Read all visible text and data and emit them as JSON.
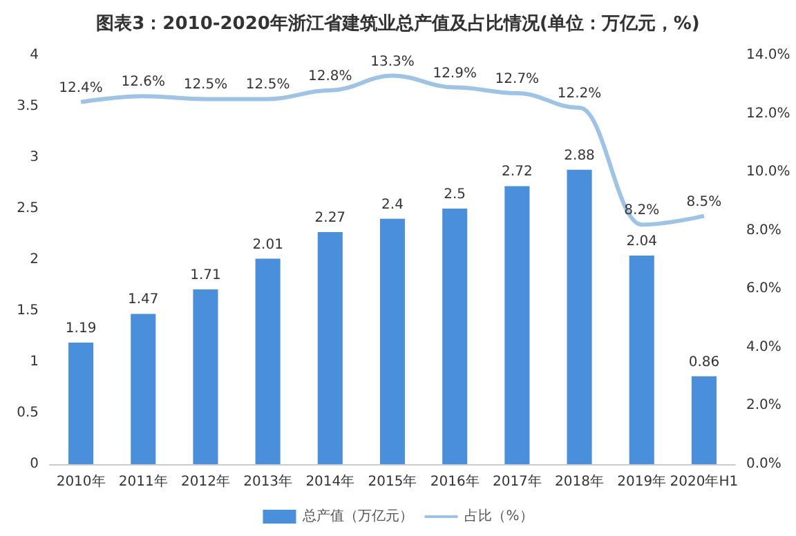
{
  "chart_data": {
    "type": "bar",
    "title": "图表3：2010-2020年浙江省建筑业总产值及占比情况(单位：万亿元，%)",
    "categories": [
      "2010年",
      "2011年",
      "2012年",
      "2013年",
      "2014年",
      "2015年",
      "2016年",
      "2017年",
      "2018年",
      "2019年",
      "2020年H1"
    ],
    "series": [
      {
        "name": "总产值（万亿元）",
        "color": "#4a8fdc",
        "values": [
          1.19,
          1.47,
          1.71,
          2.01,
          2.27,
          2.4,
          2.5,
          2.72,
          2.88,
          2.04,
          0.86
        ]
      },
      {
        "name": "占比（%）",
        "type": "line",
        "axis": "y2",
        "color": "#9dc3e6",
        "values": [
          12.4,
          12.6,
          12.5,
          12.5,
          12.8,
          13.3,
          12.9,
          12.7,
          12.2,
          8.2,
          8.5
        ],
        "value_labels": [
          "12.4%",
          "12.6%",
          "12.5%",
          "12.5%",
          "12.8%",
          "13.3%",
          "12.9%",
          "12.7%",
          "12.2%",
          "8.2%",
          "8.5%"
        ]
      }
    ],
    "data_labels": true,
    "ylim": [
      0,
      4
    ],
    "yticks": [
      0,
      0.5,
      1,
      1.5,
      2,
      2.5,
      3,
      3.5,
      4
    ],
    "y2lim": [
      0,
      14
    ],
    "y2ticks": [
      {
        "value": 0,
        "label": "0.0%"
      },
      {
        "value": 2,
        "label": "2.0%"
      },
      {
        "value": 4,
        "label": "4.0%"
      },
      {
        "value": 6,
        "label": "6.0%"
      },
      {
        "value": 8,
        "label": "8.0%"
      },
      {
        "value": 10,
        "label": "10.0%"
      },
      {
        "value": 12,
        "label": "12.0%"
      },
      {
        "value": 14,
        "label": "14.0%"
      }
    ],
    "grid": false,
    "legend": "bottom",
    "marker": "none"
  }
}
